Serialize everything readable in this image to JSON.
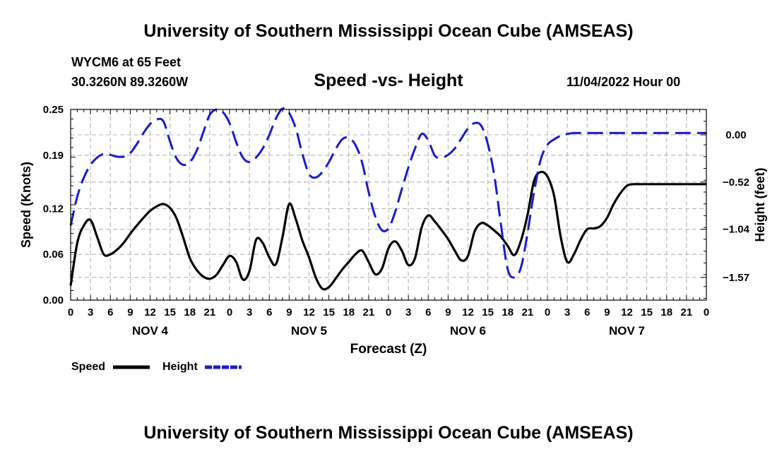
{
  "header": {
    "title": "University of Southern Mississippi Ocean Cube (AMSEAS)",
    "station": "WYCM6 at 65 Feet",
    "coords": "30.3260N  89.3260W",
    "subtitle": "Speed -vs- Height",
    "datetime": "11/04/2022 Hour 00"
  },
  "footer": {
    "title": "University of Southern Mississippi Ocean Cube (AMSEAS)"
  },
  "colors": {
    "speed": "#000000",
    "height": "#1a1acc",
    "grid": "#b4b4b4"
  },
  "chart_data": {
    "type": "line",
    "title": "Speed -vs- Height",
    "xlabel": "Forecast (Z)",
    "ylabel": "Speed (Knots)",
    "y2label": "Height (feet)",
    "xlim": [
      0,
      96
    ],
    "ylim": [
      0,
      0.25
    ],
    "y2lim": [
      -1.82,
      0.28
    ],
    "yticks": [
      0.0,
      0.06,
      0.12,
      0.19,
      0.25
    ],
    "ytick_labels": [
      "0.00",
      "0.06",
      "0.12",
      "0.19",
      "0.25"
    ],
    "y2ticks": [
      0.0,
      -0.52,
      -1.04,
      -1.57
    ],
    "y2tick_labels": [
      "0.00",
      "−0.52",
      "−1.04",
      "−1.57"
    ],
    "x_hour_labels": [
      "0",
      "3",
      "6",
      "9",
      "12",
      "15",
      "18",
      "21",
      "0",
      "3",
      "6",
      "9",
      "12",
      "15",
      "18",
      "21",
      "0",
      "3",
      "6",
      "9",
      "12",
      "15",
      "18",
      "21",
      "0",
      "3",
      "6",
      "9",
      "12",
      "15",
      "18",
      "21",
      "0"
    ],
    "day_labels": [
      {
        "label": "NOV 4",
        "at": 12
      },
      {
        "label": "NOV 5",
        "at": 36
      },
      {
        "label": "NOV 6",
        "at": 60
      },
      {
        "label": "NOV 7",
        "at": 84
      }
    ],
    "legend": [
      {
        "name": "Speed",
        "style": "solid"
      },
      {
        "name": "Height",
        "style": "dashed"
      }
    ],
    "series": [
      {
        "name": "Speed",
        "axis": "left",
        "x": [
          0,
          1,
          2,
          3,
          4,
          5,
          6,
          7,
          8,
          9,
          10,
          11,
          12,
          13,
          14,
          15,
          16,
          17,
          18,
          19,
          20,
          21,
          22,
          23,
          24,
          25,
          26,
          27,
          28,
          29,
          30,
          31,
          32,
          33,
          34,
          35,
          36,
          37,
          38,
          39,
          40,
          41,
          42,
          43,
          44,
          45,
          46,
          47,
          48,
          49,
          50,
          51,
          52,
          53,
          54,
          55,
          56,
          57,
          58,
          59,
          60,
          61,
          62,
          63,
          64,
          65,
          66,
          67,
          68,
          69,
          70,
          71,
          72,
          73,
          74,
          75,
          76,
          77,
          78,
          79,
          80,
          81,
          82,
          83,
          84,
          85,
          86,
          87,
          88,
          89,
          90,
          91,
          92,
          93,
          94,
          95,
          96
        ],
        "values": [
          0.019,
          0.075,
          0.098,
          0.105,
          0.083,
          0.06,
          0.06,
          0.066,
          0.075,
          0.087,
          0.098,
          0.108,
          0.117,
          0.123,
          0.126,
          0.121,
          0.107,
          0.082,
          0.055,
          0.04,
          0.031,
          0.028,
          0.033,
          0.046,
          0.058,
          0.05,
          0.027,
          0.038,
          0.079,
          0.075,
          0.056,
          0.047,
          0.083,
          0.126,
          0.106,
          0.078,
          0.056,
          0.03,
          0.015,
          0.017,
          0.028,
          0.04,
          0.05,
          0.06,
          0.065,
          0.05,
          0.034,
          0.041,
          0.068,
          0.077,
          0.065,
          0.046,
          0.055,
          0.095,
          0.111,
          0.103,
          0.092,
          0.08,
          0.065,
          0.052,
          0.058,
          0.09,
          0.101,
          0.098,
          0.091,
          0.083,
          0.071,
          0.059,
          0.078,
          0.112,
          0.157,
          0.168,
          0.162,
          0.137,
          0.083,
          0.05,
          0.06,
          0.079,
          0.093,
          0.094,
          0.097,
          0.108,
          0.126,
          0.14,
          0.15,
          0.152,
          0.152,
          0.152,
          0.152,
          0.152,
          0.152,
          0.152,
          0.152,
          0.152,
          0.152,
          0.152,
          0.152
        ]
      },
      {
        "name": "Height",
        "axis": "right",
        "x": [
          0,
          1,
          2,
          3,
          4,
          5,
          6,
          7,
          8,
          9,
          10,
          11,
          12,
          13,
          14,
          15,
          16,
          17,
          18,
          19,
          20,
          21,
          22,
          23,
          24,
          25,
          26,
          27,
          28,
          29,
          30,
          31,
          32,
          33,
          34,
          35,
          36,
          37,
          38,
          39,
          40,
          41,
          42,
          43,
          44,
          45,
          46,
          47,
          48,
          49,
          50,
          51,
          52,
          53,
          54,
          55,
          56,
          57,
          58,
          59,
          60,
          61,
          62,
          63,
          64,
          65,
          66,
          67,
          68,
          69,
          70,
          71,
          72,
          73,
          74,
          75,
          76,
          77,
          78,
          79,
          80,
          81,
          82,
          83,
          84,
          85,
          86,
          87,
          88,
          89,
          90,
          91,
          92,
          93,
          94,
          95,
          96
        ],
        "values": [
          -1.0,
          -0.68,
          -0.47,
          -0.33,
          -0.25,
          -0.21,
          -0.22,
          -0.24,
          -0.24,
          -0.2,
          -0.1,
          0.02,
          0.12,
          0.17,
          0.15,
          -0.07,
          -0.26,
          -0.33,
          -0.3,
          -0.18,
          0.02,
          0.22,
          0.28,
          0.25,
          0.13,
          -0.08,
          -0.25,
          -0.3,
          -0.25,
          -0.15,
          0.0,
          0.18,
          0.29,
          0.24,
          0.07,
          -0.21,
          -0.43,
          -0.47,
          -0.41,
          -0.3,
          -0.16,
          -0.05,
          -0.03,
          -0.11,
          -0.3,
          -0.63,
          -0.9,
          -1.05,
          -1.03,
          -0.85,
          -0.6,
          -0.36,
          -0.15,
          0.01,
          -0.06,
          -0.23,
          -0.25,
          -0.22,
          -0.15,
          -0.04,
          0.07,
          0.13,
          0.1,
          -0.1,
          -0.46,
          -1.0,
          -1.48,
          -1.57,
          -1.46,
          -1.08,
          -0.62,
          -0.27,
          -0.11,
          -0.05,
          -0.01,
          0.01,
          0.02,
          0.02,
          0.02,
          0.02,
          0.02,
          0.02,
          0.02,
          0.02,
          0.02,
          0.02,
          0.02,
          0.02,
          0.02,
          0.02,
          0.02,
          0.02,
          0.02,
          0.02,
          0.02,
          0.02,
          0.02
        ]
      }
    ]
  }
}
